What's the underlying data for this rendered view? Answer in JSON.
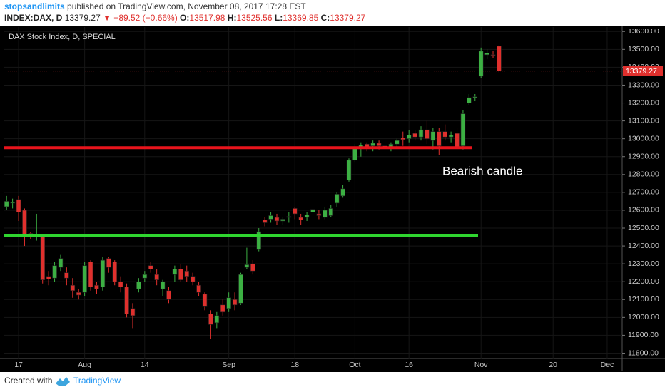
{
  "header": {
    "author": "stopsandlimits",
    "published": " published on TradingView.com, November 08, 2017 17:28 EST",
    "symbol": "INDEX:DAX, D",
    "change": "▼ −89.52 (−0.66%)",
    "ohlc_labels": [
      "O:",
      "H:",
      "L:",
      "C:"
    ]
  },
  "footer": {
    "created": "Created with",
    "brand": "TradingView"
  },
  "chart_data": {
    "type": "candlestick",
    "title": "DAX Stock Index, D, SPECIAL",
    "annotation": "Bearish candle",
    "up_color": "#3cb043",
    "down_color": "#e0302d",
    "grid": true,
    "hlines": [
      {
        "value": 12950,
        "color": "#e8141c"
      },
      {
        "value": 12460,
        "color": "#2fd52f"
      }
    ],
    "categories": [
      null,
      null,
      "17",
      null,
      null,
      null,
      null,
      null,
      null,
      null,
      null,
      null,
      null,
      "Aug",
      null,
      null,
      null,
      null,
      null,
      null,
      null,
      null,
      null,
      "14",
      null,
      null,
      null,
      null,
      null,
      null,
      null,
      null,
      null,
      null,
      null,
      null,
      null,
      "Sep",
      null,
      null,
      null,
      null,
      null,
      null,
      null,
      null,
      null,
      null,
      "18",
      null,
      null,
      null,
      null,
      null,
      null,
      null,
      null,
      null,
      "Oct",
      null,
      null,
      null,
      null,
      null,
      null,
      null,
      null,
      "16",
      null,
      null,
      null,
      null,
      null,
      null,
      null,
      null,
      null,
      null,
      null,
      "Nov",
      null,
      null,
      null,
      null,
      null,
      null,
      null,
      null,
      null,
      null,
      null,
      "20",
      null,
      null,
      null,
      null,
      null,
      null,
      null,
      null,
      "Dec",
      null,
      null
    ],
    "open": [
      12620,
      12640,
      12660,
      12600,
      12470,
      12450,
      12450,
      12230,
      12220,
      12280,
      12250,
      12180,
      12140,
      12140,
      12310,
      12180,
      12170,
      12330,
      12310,
      12200,
      12170,
      12050,
      12160,
      12220,
      12290,
      12240,
      12160,
      12150,
      12240,
      12270,
      12260,
      12230,
      12180,
      12130,
      12020,
      11970,
      12070,
      12050,
      12100,
      12080,
      12280,
      12300,
      12380,
      12545,
      12550,
      12560,
      12540,
      12560,
      12610,
      12560,
      12560,
      12590,
      12580,
      12560,
      12570,
      12640,
      12680,
      12770,
      12880,
      12950,
      12970,
      12960,
      12975,
      12960,
      12955,
      12970,
      13005,
      13000,
      13030,
      13010,
      13050,
      12990,
      13040,
      13040,
      13010,
      13030,
      12960,
      13200,
      13230,
      13350,
      13470,
      13470,
      13517.98,
      null,
      null,
      null,
      null,
      null,
      null,
      null,
      null,
      null,
      null,
      null,
      null,
      null,
      null,
      null,
      null,
      null,
      null,
      null,
      null
    ],
    "high": [
      12680,
      12665,
      12680,
      12610,
      12480,
      12580,
      12460,
      12260,
      12310,
      12350,
      12280,
      12220,
      12160,
      12310,
      12320,
      12200,
      12340,
      12340,
      12320,
      12230,
      12190,
      12080,
      12220,
      12260,
      12310,
      12270,
      12210,
      12170,
      12290,
      12300,
      12290,
      12250,
      12200,
      12140,
      12040,
      12030,
      12100,
      12140,
      12140,
      12250,
      12390,
      12320,
      12500,
      12560,
      12590,
      12580,
      12560,
      12590,
      12620,
      12580,
      12590,
      12620,
      12600,
      12620,
      12630,
      12700,
      12740,
      12890,
      12970,
      12980,
      12980,
      12990,
      12990,
      12980,
      12980,
      13000,
      13040,
      13050,
      13050,
      13070,
      13100,
      13060,
      13060,
      13080,
      13040,
      13060,
      13160,
      13250,
      13250,
      13510,
      13500,
      13490,
      13525.56,
      null,
      null,
      null,
      null,
      null,
      null,
      null,
      null,
      null,
      null,
      null,
      null,
      null,
      null,
      null,
      null,
      null,
      null,
      null,
      null
    ],
    "low": [
      12600,
      12610,
      12540,
      12400,
      12440,
      12430,
      12190,
      12180,
      12200,
      12260,
      12180,
      12110,
      12100,
      12120,
      12150,
      12130,
      12150,
      12250,
      12180,
      12140,
      12000,
      11940,
      12140,
      12200,
      12250,
      12180,
      12120,
      12080,
      12200,
      12200,
      12200,
      12180,
      12120,
      12040,
      11880,
      11940,
      12010,
      12030,
      12040,
      12070,
      12270,
      12240,
      12370,
      12510,
      12530,
      12520,
      12520,
      12530,
      12550,
      12520,
      12540,
      12580,
      12550,
      12550,
      12560,
      12620,
      12670,
      12760,
      12870,
      12900,
      12930,
      12930,
      12940,
      12910,
      12930,
      12950,
      12960,
      12980,
      12990,
      12990,
      12970,
      12940,
      12910,
      12990,
      12980,
      12950,
      12940,
      13190,
      13210,
      13340,
      13445,
      13450,
      13369.85,
      null,
      null,
      null,
      null,
      null,
      null,
      null,
      null,
      null,
      null,
      null,
      null,
      null,
      null,
      null,
      null,
      null,
      null,
      null,
      null
    ],
    "close": [
      12650,
      12645,
      12590,
      12450,
      12455,
      12465,
      12210,
      12215,
      12290,
      12330,
      12220,
      12150,
      12125,
      12290,
      12170,
      12160,
      12320,
      12280,
      12200,
      12170,
      12020,
      12010,
      12200,
      12240,
      12270,
      12210,
      12200,
      12100,
      12270,
      12210,
      12230,
      12200,
      12140,
      12060,
      11960,
      12010,
      12030,
      12110,
      12070,
      12240,
      12295,
      12260,
      12480,
      12530,
      12570,
      12540,
      12550,
      12565,
      12580,
      12545,
      12575,
      12605,
      12570,
      12600,
      12610,
      12690,
      12720,
      12880,
      12950,
      12965,
      12955,
      12975,
      12960,
      12950,
      12970,
      12990,
      12995,
      13020,
      13010,
      13050,
      13000,
      13040,
      12960,
      13010,
      13020,
      12950,
      13140,
      13230,
      13235,
      13490,
      13480,
      13468.79,
      13379.27,
      null,
      null,
      null,
      null,
      null,
      null,
      null,
      null,
      null,
      null,
      null,
      null,
      null,
      null,
      null,
      null,
      null,
      null,
      null,
      null
    ],
    "ylim": [
      11770,
      13625
    ],
    "yticks": [
      {
        "value": 11800,
        "label": "11800.00"
      },
      {
        "value": 11900,
        "label": "11900.00"
      },
      {
        "value": 12000,
        "label": "12000.00"
      },
      {
        "value": 12100,
        "label": "12100.00"
      },
      {
        "value": 12200,
        "label": "12200.00"
      },
      {
        "value": 12300,
        "label": "12300.00"
      },
      {
        "value": 12400,
        "label": "12400.00"
      },
      {
        "value": 12500,
        "label": "12500.00"
      },
      {
        "value": 12600,
        "label": "12600.00"
      },
      {
        "value": 12700,
        "label": "12700.00"
      },
      {
        "value": 12800,
        "label": "12800.00"
      },
      {
        "value": 12900,
        "label": "12900.00"
      },
      {
        "value": 13000,
        "label": "13000.00"
      },
      {
        "value": 13100,
        "label": "13100.00"
      },
      {
        "value": 13200,
        "label": "13200.00"
      },
      {
        "value": 13300,
        "label": "13300.00"
      },
      {
        "value": 13400,
        "label": "13400.00"
      },
      {
        "value": 13500,
        "label": "13500.00"
      },
      {
        "value": 13600,
        "label": "13600.00"
      }
    ]
  }
}
